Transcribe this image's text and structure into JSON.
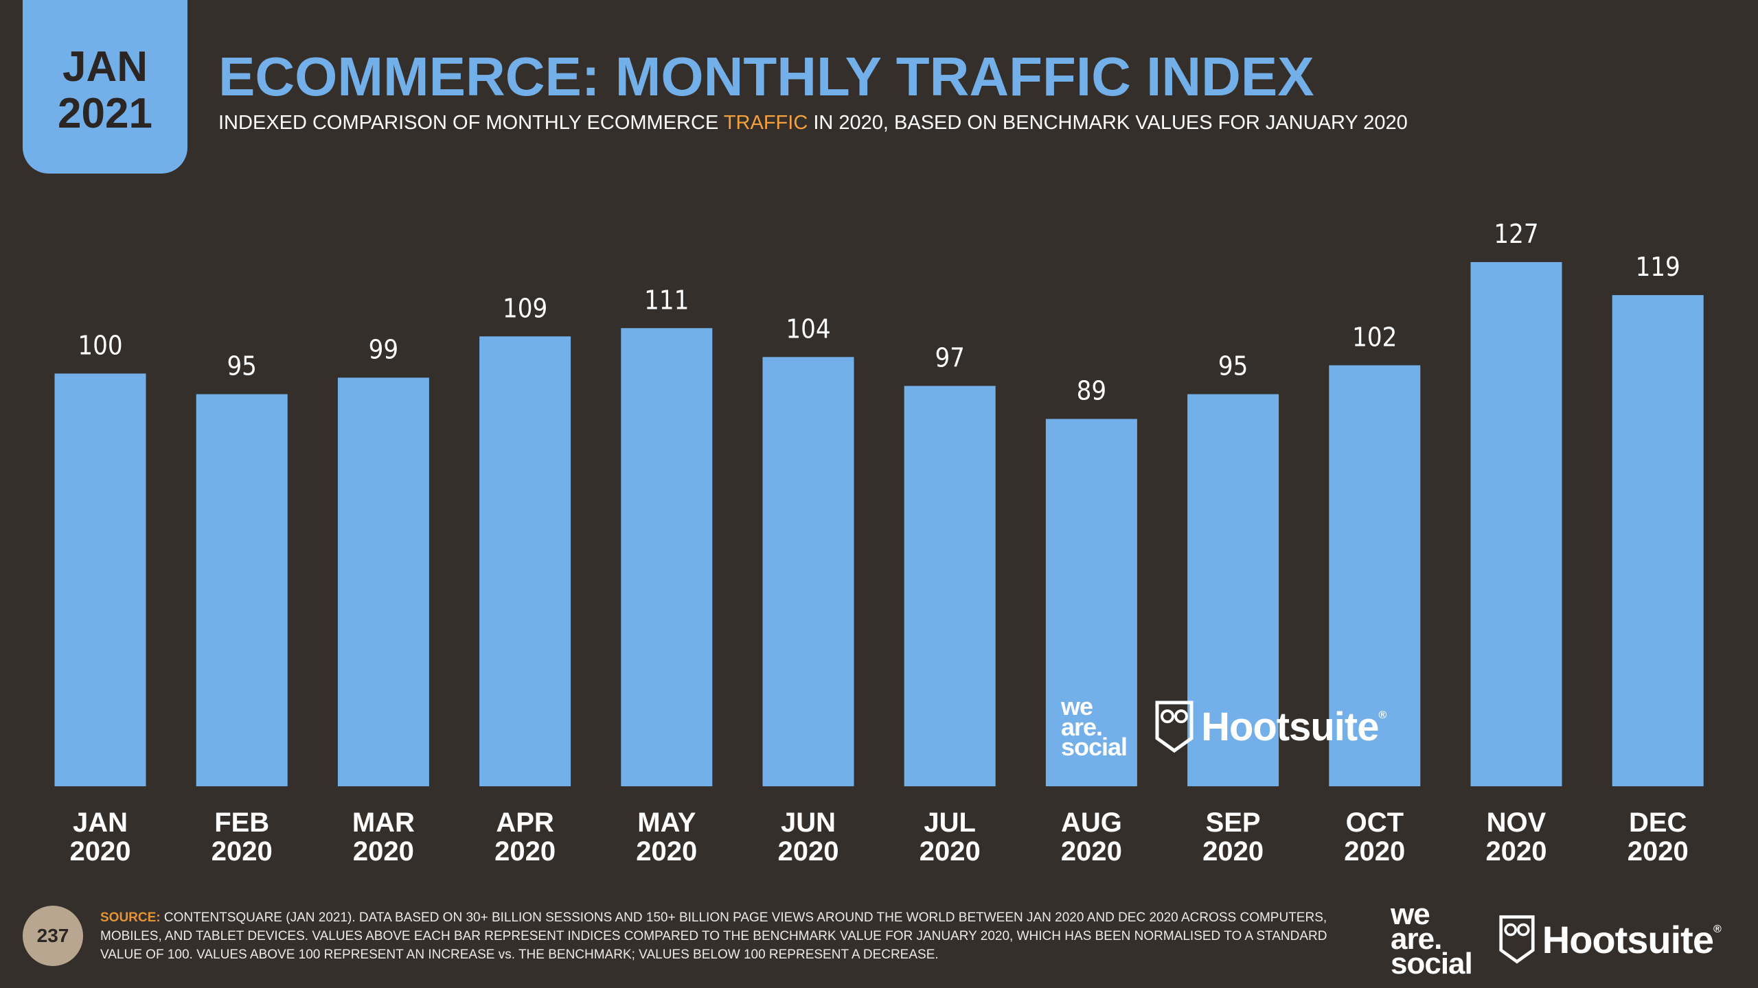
{
  "badge": {
    "month": "JAN",
    "year": "2021"
  },
  "header": {
    "title": "ECOMMERCE: MONTHLY TRAFFIC INDEX",
    "subtitle_pre": "INDEXED COMPARISON OF MONTHLY ECOMMERCE ",
    "subtitle_highlight": "TRAFFIC",
    "subtitle_post": " IN 2020, BASED ON BENCHMARK VALUES FOR JANUARY 2020"
  },
  "colors": {
    "background": "#352f2b",
    "bar": "#73b0e9",
    "accent": "#f6a03b",
    "badge": "#73b0e9",
    "page_badge": "#b8a690"
  },
  "chart_data": {
    "type": "bar",
    "title": "ECOMMERCE: MONTHLY TRAFFIC INDEX",
    "categories": [
      [
        "JAN",
        "2020"
      ],
      [
        "FEB",
        "2020"
      ],
      [
        "MAR",
        "2020"
      ],
      [
        "APR",
        "2020"
      ],
      [
        "MAY",
        "2020"
      ],
      [
        "JUN",
        "2020"
      ],
      [
        "JUL",
        "2020"
      ],
      [
        "AUG",
        "2020"
      ],
      [
        "SEP",
        "2020"
      ],
      [
        "OCT",
        "2020"
      ],
      [
        "NOV",
        "2020"
      ],
      [
        "DEC",
        "2020"
      ]
    ],
    "values": [
      100,
      95,
      99,
      109,
      111,
      104,
      97,
      89,
      95,
      102,
      127,
      119
    ],
    "ylim": [
      0,
      127
    ],
    "xlabel": "",
    "ylabel": "",
    "grid": false
  },
  "watermark": {
    "was_line1": "we",
    "was_line2": "are.",
    "was_line3": "social",
    "hootsuite": "Hootsuite"
  },
  "footer": {
    "page_number": "237",
    "source_label": "SOURCE:",
    "source_text": " CONTENTSQUARE (JAN 2021). DATA BASED ON 30+ BILLION SESSIONS AND 150+ BILLION PAGE VIEWS AROUND THE WORLD BETWEEN JAN 2020 AND DEC 2020 ACROSS COMPUTERS, MOBILES, AND TABLET DEVICES. VALUES ABOVE EACH BAR REPRESENT INDICES COMPARED TO THE BENCHMARK VALUE FOR JANUARY 2020, WHICH HAS BEEN NORMALISED TO A STANDARD VALUE OF 100. VALUES ABOVE 100 REPRESENT AN INCREASE vs. THE BENCHMARK; VALUES BELOW 100 REPRESENT A DECREASE."
  }
}
